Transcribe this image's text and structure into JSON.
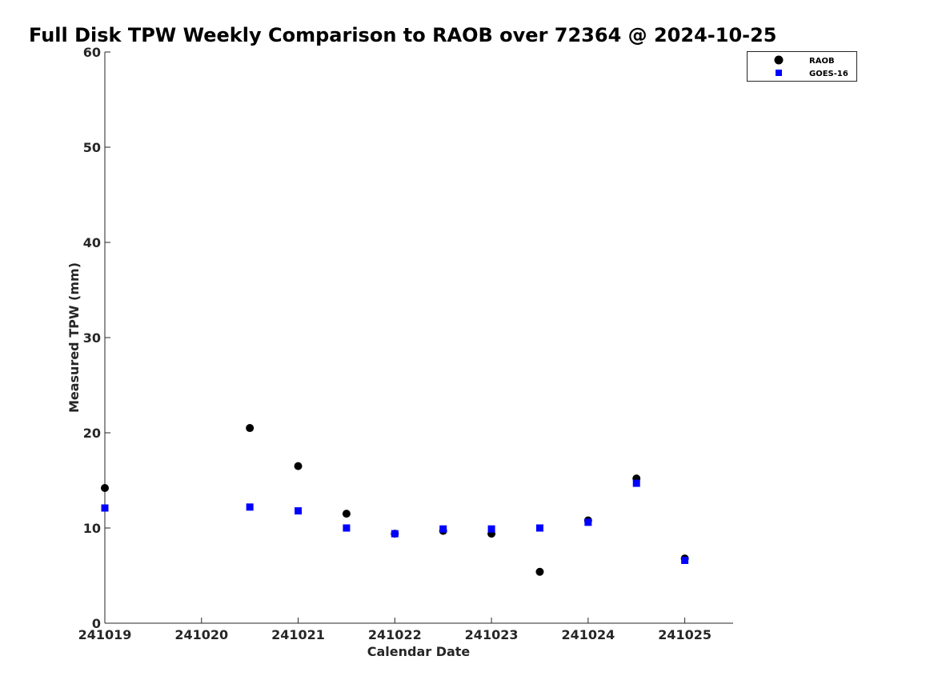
{
  "chart_data": {
    "type": "scatter",
    "title": "Full Disk TPW Weekly Comparison to RAOB over 72364 @ 2024-10-25",
    "xlabel": "Calendar Date",
    "ylabel": "Measured TPW (mm)",
    "xlim": [
      "2024-10-19 00:00",
      "2024-10-25 12:00"
    ],
    "ylim": [
      0,
      60
    ],
    "yticks": [
      0,
      10,
      20,
      30,
      40,
      50,
      60
    ],
    "xticks": [
      {
        "date": "2024-10-19",
        "label": "241019"
      },
      {
        "date": "2024-10-20",
        "label": "241020"
      },
      {
        "date": "2024-10-21",
        "label": "241021"
      },
      {
        "date": "2024-10-22",
        "label": "241022"
      },
      {
        "date": "2024-10-23",
        "label": "241023"
      },
      {
        "date": "2024-10-24",
        "label": "241024"
      },
      {
        "date": "2024-10-25",
        "label": "241025"
      }
    ],
    "grid": false,
    "legend_position": "top-right",
    "series": [
      {
        "name": "RAOB",
        "marker": "circle",
        "color": "#000000",
        "points": [
          {
            "x": "2024-10-19 00:00",
            "y": 14.2
          },
          {
            "x": "2024-10-20 12:00",
            "y": 20.5
          },
          {
            "x": "2024-10-21 00:00",
            "y": 16.5
          },
          {
            "x": "2024-10-21 12:00",
            "y": 11.5
          },
          {
            "x": "2024-10-22 00:00",
            "y": 9.4
          },
          {
            "x": "2024-10-22 12:00",
            "y": 9.7
          },
          {
            "x": "2024-10-23 00:00",
            "y": 9.4
          },
          {
            "x": "2024-10-23 12:00",
            "y": 5.4
          },
          {
            "x": "2024-10-24 00:00",
            "y": 10.8
          },
          {
            "x": "2024-10-24 12:00",
            "y": 15.2
          },
          {
            "x": "2024-10-25 00:00",
            "y": 6.8
          }
        ]
      },
      {
        "name": "GOES-16",
        "marker": "square",
        "color": "#0000ff",
        "points": [
          {
            "x": "2024-10-19 00:00",
            "y": 12.1
          },
          {
            "x": "2024-10-20 12:00",
            "y": 12.2
          },
          {
            "x": "2024-10-21 00:00",
            "y": 11.8
          },
          {
            "x": "2024-10-21 12:00",
            "y": 10.0
          },
          {
            "x": "2024-10-22 00:00",
            "y": 9.4
          },
          {
            "x": "2024-10-22 12:00",
            "y": 9.9
          },
          {
            "x": "2024-10-23 00:00",
            "y": 9.9
          },
          {
            "x": "2024-10-23 12:00",
            "y": 10.0
          },
          {
            "x": "2024-10-24 00:00",
            "y": 10.6
          },
          {
            "x": "2024-10-24 12:00",
            "y": 14.7
          },
          {
            "x": "2024-10-25 00:00",
            "y": 6.6
          }
        ]
      }
    ]
  }
}
